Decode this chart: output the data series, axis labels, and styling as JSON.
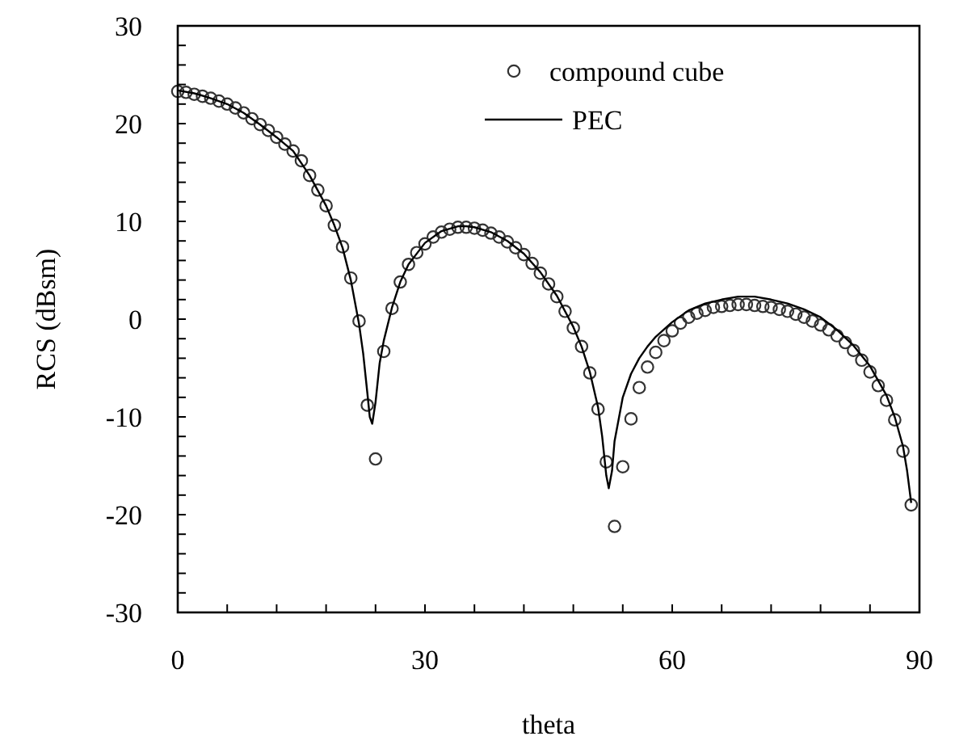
{
  "chart_data": {
    "type": "line",
    "xlabel": "theta",
    "ylabel": "RCS (dBsm)",
    "xlim": [
      0,
      90
    ],
    "ylim": [
      -30,
      30
    ],
    "xticks": [
      0,
      {
        "value": 6,
        "label": null
      },
      {
        "value": 12,
        "label": null
      },
      {
        "value": 18,
        "label": null
      },
      {
        "value": 24,
        "label": null
      },
      30,
      {
        "value": 36,
        "label": null
      },
      {
        "value": 42,
        "label": null
      },
      {
        "value": 48,
        "label": null
      },
      {
        "value": 54,
        "label": null
      },
      60,
      {
        "value": 66,
        "label": null
      },
      {
        "value": 72,
        "label": null
      },
      {
        "value": 78,
        "label": null
      },
      {
        "value": 84,
        "label": null
      },
      90
    ],
    "yticks": [
      -30,
      {
        "value": -28,
        "label": null
      },
      {
        "value": -26,
        "label": null
      },
      {
        "value": -24,
        "label": null
      },
      {
        "value": -22,
        "label": null
      },
      -20,
      {
        "value": -18,
        "label": null
      },
      {
        "value": -16,
        "label": null
      },
      {
        "value": -14,
        "label": null
      },
      {
        "value": -12,
        "label": null
      },
      -10,
      {
        "value": -8,
        "label": null
      },
      {
        "value": -6,
        "label": null
      },
      {
        "value": -4,
        "label": null
      },
      {
        "value": -2,
        "label": null
      },
      0,
      {
        "value": 2,
        "label": null
      },
      {
        "value": 4,
        "label": null
      },
      {
        "value": 6,
        "label": null
      },
      {
        "value": 8,
        "label": null
      },
      10,
      {
        "value": 12,
        "label": null
      },
      {
        "value": 14,
        "label": null
      },
      {
        "value": 16,
        "label": null
      },
      {
        "value": 18,
        "label": null
      },
      20,
      {
        "value": 22,
        "label": null
      },
      {
        "value": 24,
        "label": null
      },
      {
        "value": 26,
        "label": null
      },
      {
        "value": 28,
        "label": null
      },
      30
    ],
    "grid": false,
    "legend": "top right",
    "line_style": "solid",
    "series": [
      {
        "name": "compound cube",
        "type": "scatter",
        "marker": "circle",
        "color": "#333333",
        "x": [
          0,
          1,
          2,
          3,
          4,
          5,
          6,
          7,
          8,
          9,
          10,
          11,
          12,
          13,
          14,
          15,
          16,
          17,
          18,
          19,
          20,
          21,
          22,
          23,
          24,
          25,
          26,
          27,
          28,
          29,
          30,
          31,
          32,
          33,
          34,
          35,
          36,
          37,
          38,
          39,
          40,
          41,
          42,
          43,
          44,
          45,
          46,
          47,
          48,
          49,
          50,
          51,
          52,
          53,
          54,
          55,
          56,
          57,
          58,
          59,
          60,
          61,
          62,
          63,
          64,
          65,
          66,
          67,
          68,
          69,
          70,
          71,
          72,
          73,
          74,
          75,
          76,
          77,
          78,
          79,
          80,
          81,
          82,
          83,
          84,
          85,
          86,
          87,
          88,
          89
        ],
        "values": [
          23.3,
          23.2,
          23.0,
          22.8,
          22.6,
          22.3,
          22.0,
          21.6,
          21.1,
          20.5,
          19.9,
          19.3,
          18.6,
          17.9,
          17.2,
          16.2,
          14.7,
          13.2,
          11.6,
          9.6,
          7.4,
          4.2,
          -0.2,
          -8.8,
          -14.3,
          -3.3,
          1.1,
          3.8,
          5.6,
          6.8,
          7.7,
          8.4,
          8.9,
          9.2,
          9.4,
          9.4,
          9.3,
          9.1,
          8.8,
          8.4,
          7.9,
          7.3,
          6.6,
          5.7,
          4.7,
          3.6,
          2.3,
          0.8,
          -0.9,
          -2.8,
          -5.5,
          -9.2,
          -14.6,
          -21.2,
          -15.1,
          -10.2,
          -7.0,
          -4.9,
          -3.4,
          -2.2,
          -1.2,
          -0.4,
          0.2,
          0.6,
          0.9,
          1.2,
          1.3,
          1.4,
          1.5,
          1.5,
          1.4,
          1.3,
          1.2,
          1.0,
          0.8,
          0.5,
          0.2,
          -0.2,
          -0.6,
          -1.1,
          -1.7,
          -2.4,
          -3.2,
          -4.2,
          -5.4,
          -6.8,
          -8.3,
          -10.3,
          -13.5,
          -19.0
        ]
      },
      {
        "name": "PEC",
        "marker": "none",
        "color": "#000000",
        "x": [
          0,
          2,
          4,
          6,
          8,
          10,
          12,
          14,
          16,
          18,
          19,
          20,
          21,
          22,
          22.5,
          23,
          23.3,
          23.6,
          24,
          24.5,
          25,
          26,
          27,
          28,
          30,
          32,
          34,
          35,
          36,
          38,
          40,
          42,
          44,
          46,
          48,
          49,
          50,
          51,
          51.5,
          52,
          52.3,
          52.7,
          53,
          54,
          55,
          56,
          57,
          58,
          60,
          62,
          64,
          66,
          68,
          69,
          70,
          72,
          74,
          76,
          78,
          80,
          82,
          84,
          86,
          87,
          88,
          88.5,
          89
        ],
        "values": [
          23.4,
          23.1,
          22.6,
          22.0,
          21.1,
          19.9,
          18.6,
          17.2,
          14.7,
          11.6,
          9.6,
          7.3,
          4.0,
          -0.5,
          -3.5,
          -7.5,
          -10.0,
          -10.7,
          -8.5,
          -4.5,
          -2.2,
          1.2,
          3.8,
          5.6,
          7.8,
          9.0,
          9.5,
          9.5,
          9.4,
          8.9,
          8.0,
          6.7,
          4.8,
          2.4,
          -0.8,
          -2.8,
          -5.4,
          -9.0,
          -12.0,
          -16.0,
          -17.3,
          -15.5,
          -12.5,
          -8.0,
          -5.6,
          -4.0,
          -2.8,
          -1.8,
          -0.3,
          0.9,
          1.6,
          2.0,
          2.3,
          2.3,
          2.3,
          2.0,
          1.6,
          1.0,
          0.2,
          -1.1,
          -2.7,
          -4.8,
          -7.8,
          -10.0,
          -13.0,
          -15.5,
          -18.8
        ]
      }
    ]
  }
}
